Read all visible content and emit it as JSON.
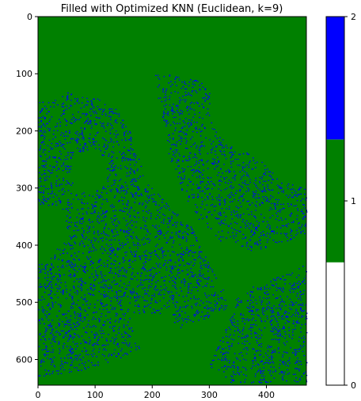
{
  "chart_data": {
    "type": "heatmap",
    "title": "Filled with Optimized KNN (Euclidean, k=9)",
    "xlabel": "",
    "ylabel": "",
    "xlim": [
      0,
      470
    ],
    "ylim": [
      645,
      0
    ],
    "xticks": [
      0,
      100,
      200,
      300,
      400
    ],
    "yticks": [
      0,
      100,
      200,
      300,
      400,
      500,
      600
    ],
    "colorbar": {
      "ticks": [
        0,
        1,
        2
      ],
      "range": [
        0,
        2
      ],
      "colors": [
        "#ffffff",
        "#008000",
        "#0000ff"
      ]
    },
    "background_value": 1,
    "dominant_class": "green"
  }
}
